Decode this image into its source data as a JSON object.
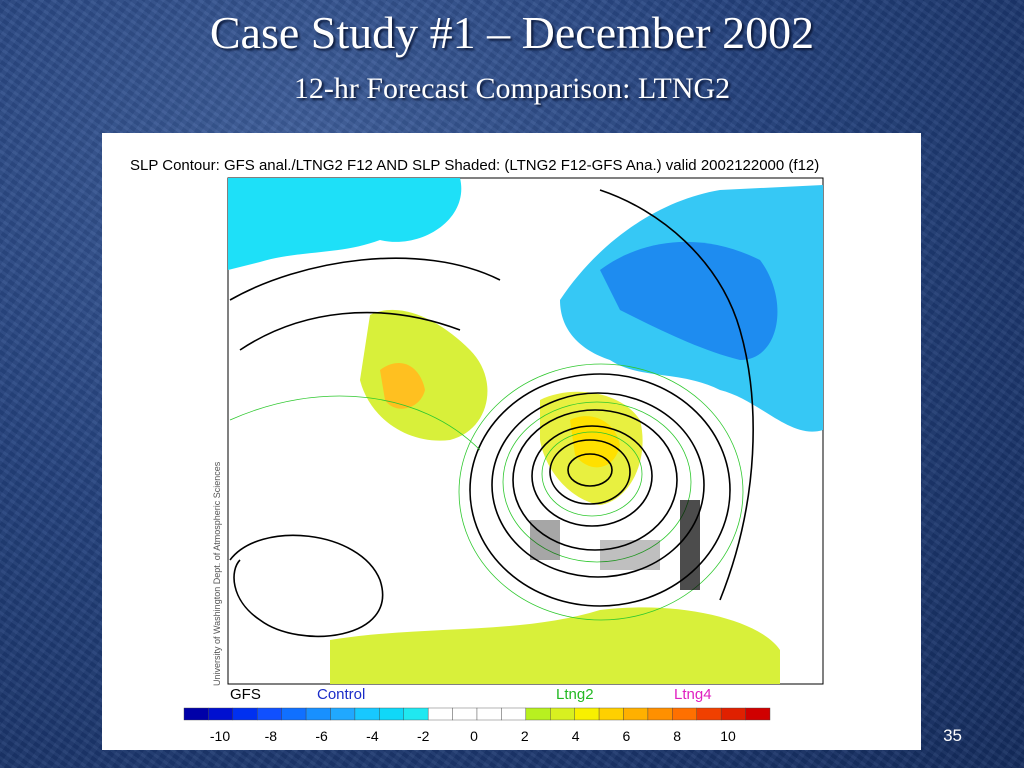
{
  "slide": {
    "title": "Case Study #1 – December 2002",
    "subtitle": "12-hr Forecast Comparison: LTNG2",
    "page_number": "35"
  },
  "figure": {
    "caption": "SLP Contour: GFS anal./LTNG2 F12 AND SLP Shaded: (LTNG2 F12-GFS Ana.) valid 2002122000 (f12)",
    "credit": "University of Washington Dept. of Atmospheric Sciences",
    "legend": [
      "GFS",
      "Control",
      "Ltng2",
      "Ltng4"
    ],
    "colorbar_ticks": [
      -10,
      -8,
      -6,
      -4,
      -2,
      0,
      2,
      4,
      6,
      8,
      10
    ]
  }
}
